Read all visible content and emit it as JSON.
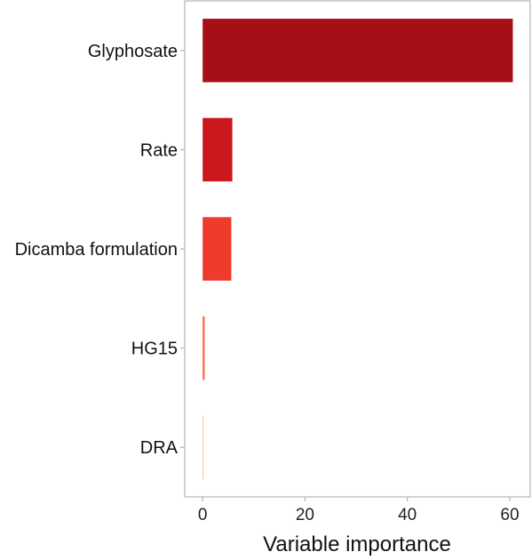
{
  "chart_data": {
    "type": "bar",
    "orientation": "horizontal",
    "categories": [
      "Glyphosate",
      "Rate",
      "Dicamba formulation",
      "HG15",
      "DRA"
    ],
    "values": [
      60.6,
      5.8,
      5.6,
      0.4,
      0.1
    ],
    "colors": [
      "#a50f15",
      "#cb181d",
      "#ef3b2c",
      "#fb6a4a",
      "#fcbba1"
    ],
    "xlabel": "Variable importance",
    "ylabel": "",
    "xlim": [
      -3.5,
      64
    ],
    "xticks": [
      0,
      20,
      40,
      60
    ],
    "xtick_labels": [
      "0",
      "20",
      "40",
      "60"
    ],
    "grid": false,
    "legend": "none"
  }
}
